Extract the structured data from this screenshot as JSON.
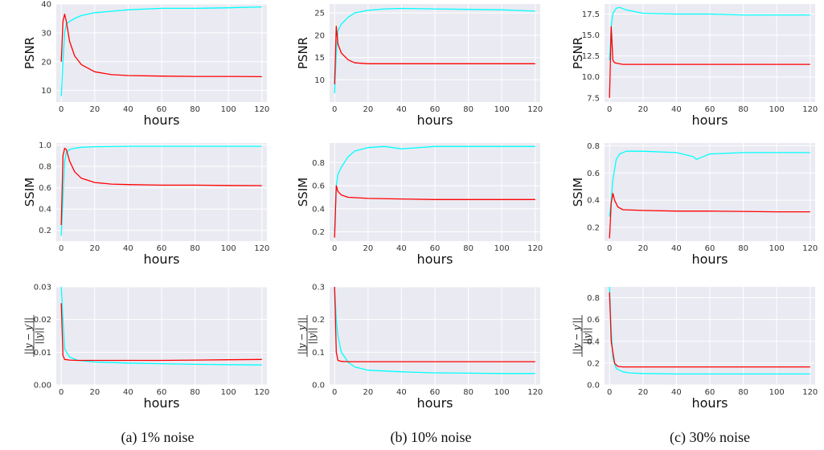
{
  "colors": {
    "series_a": "#00ffff",
    "series_b": "#ff0000",
    "plot_background": "#eaeaf2"
  },
  "captions": [
    "(a) 1% noise",
    "(b) 10% noise",
    "(c) 30% noise"
  ],
  "chart_data": [
    {
      "type": "line",
      "column": 0,
      "row": 0,
      "xlabel": "hours",
      "ylabel": "PSNR",
      "ylabel_kind": "text",
      "xlim": [
        -3,
        123
      ],
      "ylim": [
        6,
        40
      ],
      "xticks": [
        0,
        20,
        40,
        60,
        80,
        100,
        120
      ],
      "xtick_labels": [
        "0",
        "20",
        "40",
        "60",
        "80",
        "100",
        "120"
      ],
      "yticks": [
        10,
        20,
        30,
        40
      ],
      "ytick_labels": [
        "10",
        "20",
        "30",
        "40"
      ],
      "grid": true,
      "legend": "none",
      "series": [
        {
          "color": "#00ffff",
          "x": [
            0,
            1,
            2,
            3,
            5,
            8,
            12,
            20,
            30,
            40,
            60,
            80,
            100,
            120
          ],
          "y": [
            8,
            20,
            30,
            33,
            34,
            35,
            36,
            37,
            37.5,
            38,
            38.5,
            38.5,
            38.7,
            39
          ]
        },
        {
          "color": "#ff0000",
          "x": [
            0,
            1,
            2,
            3,
            5,
            8,
            12,
            20,
            30,
            40,
            60,
            80,
            100,
            120
          ],
          "y": [
            20,
            34,
            36.5,
            34,
            27,
            22,
            19,
            16.5,
            15.5,
            15.2,
            15,
            14.9,
            14.9,
            14.8
          ]
        }
      ]
    },
    {
      "type": "line",
      "column": 1,
      "row": 0,
      "xlabel": "hours",
      "ylabel": "PSNR",
      "ylabel_kind": "text",
      "xlim": [
        -3,
        123
      ],
      "ylim": [
        5,
        27
      ],
      "xticks": [
        0,
        20,
        40,
        60,
        80,
        100,
        120
      ],
      "xtick_labels": [
        "0",
        "20",
        "40",
        "60",
        "80",
        "100",
        "120"
      ],
      "yticks": [
        10,
        15,
        20,
        25
      ],
      "ytick_labels": [
        "10",
        "15",
        "20",
        "25"
      ],
      "grid": true,
      "legend": "none",
      "series": [
        {
          "color": "#00ffff",
          "x": [
            0,
            1,
            2,
            4,
            8,
            12,
            20,
            30,
            40,
            60,
            80,
            100,
            120
          ],
          "y": [
            7,
            16,
            21,
            22.5,
            24,
            25,
            25.6,
            25.9,
            26,
            25.9,
            25.8,
            25.7,
            25.4
          ]
        },
        {
          "color": "#ff0000",
          "x": [
            0,
            1,
            2,
            4,
            8,
            12,
            20,
            40,
            60,
            80,
            100,
            120
          ],
          "y": [
            9,
            22,
            18,
            16,
            14.5,
            13.8,
            13.6,
            13.6,
            13.6,
            13.6,
            13.6,
            13.6
          ]
        }
      ]
    },
    {
      "type": "line",
      "column": 2,
      "row": 0,
      "xlabel": "hours",
      "ylabel": "PSNR",
      "ylabel_kind": "text",
      "xlim": [
        -3,
        123
      ],
      "ylim": [
        7,
        18.7
      ],
      "xticks": [
        0,
        20,
        40,
        60,
        80,
        100,
        120
      ],
      "xtick_labels": [
        "0",
        "20",
        "40",
        "60",
        "80",
        "100",
        "120"
      ],
      "yticks": [
        7.5,
        10,
        12.5,
        15,
        17.5
      ],
      "ytick_labels": [
        "7.5",
        "10.0",
        "12.5",
        "15.0",
        "17.5"
      ],
      "grid": true,
      "legend": "none",
      "series": [
        {
          "color": "#00ffff",
          "x": [
            0,
            1,
            2,
            4,
            6,
            10,
            20,
            40,
            60,
            80,
            100,
            120
          ],
          "y": [
            12,
            16,
            17.6,
            18.2,
            18.3,
            18,
            17.6,
            17.5,
            17.5,
            17.4,
            17.4,
            17.4
          ]
        },
        {
          "color": "#ff0000",
          "x": [
            0,
            1,
            2,
            3,
            5,
            8,
            20,
            40,
            60,
            80,
            100,
            120
          ],
          "y": [
            7.5,
            16,
            12,
            11.7,
            11.6,
            11.5,
            11.5,
            11.5,
            11.5,
            11.5,
            11.5,
            11.5
          ]
        }
      ]
    },
    {
      "type": "line",
      "column": 0,
      "row": 1,
      "xlabel": "hours",
      "ylabel": "SSIM",
      "ylabel_kind": "text",
      "xlim": [
        -3,
        123
      ],
      "ylim": [
        0.1,
        1.02
      ],
      "xticks": [
        0,
        20,
        40,
        60,
        80,
        100,
        120
      ],
      "xtick_labels": [
        "0",
        "20",
        "40",
        "60",
        "80",
        "100",
        "120"
      ],
      "yticks": [
        0.2,
        0.4,
        0.6,
        0.8,
        1.0
      ],
      "ytick_labels": [
        "0.2",
        "0.4",
        "0.6",
        "0.8",
        "1.0"
      ],
      "grid": true,
      "legend": "none",
      "series": [
        {
          "color": "#00ffff",
          "x": [
            0,
            1,
            2,
            3,
            5,
            8,
            12,
            20,
            40,
            60,
            80,
            100,
            120
          ],
          "y": [
            0.15,
            0.5,
            0.85,
            0.93,
            0.96,
            0.97,
            0.98,
            0.985,
            0.99,
            0.99,
            0.99,
            0.99,
            0.99
          ]
        },
        {
          "color": "#ff0000",
          "x": [
            0,
            1,
            2,
            3,
            5,
            8,
            12,
            20,
            30,
            40,
            60,
            80,
            100,
            120
          ],
          "y": [
            0.25,
            0.9,
            0.97,
            0.96,
            0.85,
            0.75,
            0.69,
            0.65,
            0.635,
            0.63,
            0.625,
            0.625,
            0.622,
            0.62
          ]
        }
      ]
    },
    {
      "type": "line",
      "column": 1,
      "row": 1,
      "xlabel": "hours",
      "ylabel": "SSIM",
      "ylabel_kind": "text",
      "xlim": [
        -3,
        123
      ],
      "ylim": [
        0.12,
        0.97
      ],
      "xticks": [
        0,
        20,
        40,
        60,
        80,
        100,
        120
      ],
      "xtick_labels": [
        "0",
        "20",
        "40",
        "60",
        "80",
        "100",
        "120"
      ],
      "yticks": [
        0.2,
        0.4,
        0.6,
        0.8
      ],
      "ytick_labels": [
        "0.2",
        "0.4",
        "0.6",
        "0.8"
      ],
      "grid": true,
      "legend": "none",
      "series": [
        {
          "color": "#00ffff",
          "x": [
            0,
            1,
            2,
            4,
            8,
            12,
            20,
            30,
            40,
            60,
            80,
            100,
            120
          ],
          "y": [
            0.2,
            0.6,
            0.7,
            0.76,
            0.85,
            0.9,
            0.93,
            0.94,
            0.92,
            0.94,
            0.94,
            0.94,
            0.94
          ]
        },
        {
          "color": "#ff0000",
          "x": [
            0,
            1,
            2,
            4,
            8,
            20,
            40,
            60,
            80,
            100,
            120
          ],
          "y": [
            0.15,
            0.6,
            0.55,
            0.52,
            0.5,
            0.49,
            0.485,
            0.48,
            0.48,
            0.48,
            0.48
          ]
        }
      ]
    },
    {
      "type": "line",
      "column": 2,
      "row": 1,
      "xlabel": "hours",
      "ylabel": "SSIM",
      "ylabel_kind": "text",
      "xlim": [
        -3,
        123
      ],
      "ylim": [
        0.1,
        0.82
      ],
      "xticks": [
        0,
        20,
        40,
        60,
        80,
        100,
        120
      ],
      "xtick_labels": [
        "0",
        "20",
        "40",
        "60",
        "80",
        "100",
        "120"
      ],
      "yticks": [
        0.2,
        0.4,
        0.6,
        0.8
      ],
      "ytick_labels": [
        "0.2",
        "0.4",
        "0.6",
        "0.8"
      ],
      "grid": true,
      "legend": "none",
      "series": [
        {
          "color": "#00ffff",
          "x": [
            0,
            1,
            2,
            4,
            6,
            10,
            20,
            40,
            50,
            52,
            60,
            80,
            100,
            120
          ],
          "y": [
            0.28,
            0.4,
            0.55,
            0.7,
            0.74,
            0.76,
            0.76,
            0.75,
            0.72,
            0.7,
            0.74,
            0.75,
            0.75,
            0.75
          ]
        },
        {
          "color": "#ff0000",
          "x": [
            0,
            1,
            2,
            3,
            5,
            8,
            20,
            40,
            60,
            80,
            100,
            120
          ],
          "y": [
            0.12,
            0.38,
            0.45,
            0.4,
            0.35,
            0.33,
            0.325,
            0.32,
            0.32,
            0.318,
            0.315,
            0.315
          ]
        }
      ]
    },
    {
      "type": "line",
      "column": 0,
      "row": 2,
      "xlabel": "hours",
      "ylabel": "||y − y′|| / ||y||",
      "ylabel_kind": "fraction",
      "ylabel_num": "||y − y′||",
      "ylabel_den": "||y||",
      "xlim": [
        -3,
        123
      ],
      "ylim": [
        0,
        0.03
      ],
      "xticks": [
        0,
        20,
        40,
        60,
        80,
        100,
        120
      ],
      "xtick_labels": [
        "0",
        "20",
        "40",
        "60",
        "80",
        "100",
        "120"
      ],
      "yticks": [
        0.0,
        0.01,
        0.02,
        0.03
      ],
      "ytick_labels": [
        "0.00",
        "0.01",
        "0.02",
        "0.03"
      ],
      "grid": true,
      "legend": "none",
      "series": [
        {
          "color": "#00ffff",
          "x": [
            0,
            1,
            2,
            5,
            10,
            20,
            40,
            60,
            80,
            100,
            120
          ],
          "y": [
            0.03,
            0.02,
            0.011,
            0.0085,
            0.0075,
            0.007,
            0.0067,
            0.0065,
            0.0063,
            0.0062,
            0.0061
          ]
        },
        {
          "color": "#ff0000",
          "x": [
            0,
            1,
            2,
            5,
            10,
            20,
            40,
            60,
            80,
            100,
            120
          ],
          "y": [
            0.025,
            0.009,
            0.0078,
            0.0076,
            0.0075,
            0.0075,
            0.0075,
            0.0075,
            0.0076,
            0.0077,
            0.0078
          ]
        }
      ]
    },
    {
      "type": "line",
      "column": 1,
      "row": 2,
      "xlabel": "hours",
      "ylabel": "||y − y′|| / ||y||",
      "ylabel_kind": "fraction",
      "ylabel_num": "||y − y′||",
      "ylabel_den": "||y||",
      "xlim": [
        -3,
        123
      ],
      "ylim": [
        0,
        0.3
      ],
      "xticks": [
        0,
        20,
        40,
        60,
        80,
        100,
        120
      ],
      "xtick_labels": [
        "0",
        "20",
        "40",
        "60",
        "80",
        "100",
        "120"
      ],
      "yticks": [
        0.0,
        0.1,
        0.2,
        0.3
      ],
      "ytick_labels": [
        "0.0",
        "0.1",
        "0.2",
        "0.3"
      ],
      "grid": true,
      "legend": "none",
      "series": [
        {
          "color": "#00ffff",
          "x": [
            0,
            1,
            2,
            4,
            8,
            12,
            20,
            40,
            60,
            80,
            100,
            120
          ],
          "y": [
            0.3,
            0.2,
            0.15,
            0.1,
            0.07,
            0.055,
            0.045,
            0.04,
            0.037,
            0.036,
            0.035,
            0.035
          ]
        },
        {
          "color": "#ff0000",
          "x": [
            0,
            1,
            2,
            4,
            8,
            20,
            40,
            60,
            80,
            100,
            120
          ],
          "y": [
            0.3,
            0.1,
            0.075,
            0.072,
            0.071,
            0.071,
            0.071,
            0.071,
            0.071,
            0.071,
            0.071
          ]
        }
      ]
    },
    {
      "type": "line",
      "column": 2,
      "row": 2,
      "xlabel": "hours",
      "ylabel": "||y − y′|| / ||y||",
      "ylabel_kind": "fraction",
      "ylabel_num": "||y − y′||",
      "ylabel_den": "||y||",
      "xlim": [
        -3,
        123
      ],
      "ylim": [
        0,
        0.9
      ],
      "xticks": [
        0,
        20,
        40,
        60,
        80,
        100,
        120
      ],
      "xtick_labels": [
        "0",
        "20",
        "40",
        "60",
        "80",
        "100",
        "120"
      ],
      "yticks": [
        0.0,
        0.2,
        0.4,
        0.6,
        0.8
      ],
      "ytick_labels": [
        "0.0",
        "0.2",
        "0.4",
        "0.6",
        "0.8"
      ],
      "grid": true,
      "legend": "none",
      "series": [
        {
          "color": "#00ffff",
          "x": [
            0,
            1,
            2,
            4,
            8,
            12,
            20,
            40,
            60,
            80,
            100,
            120
          ],
          "y": [
            0.9,
            0.5,
            0.25,
            0.15,
            0.12,
            0.11,
            0.105,
            0.1,
            0.1,
            0.1,
            0.1,
            0.1
          ]
        },
        {
          "color": "#ff0000",
          "x": [
            0,
            1,
            2,
            3,
            5,
            8,
            20,
            40,
            60,
            80,
            100,
            120
          ],
          "y": [
            0.85,
            0.4,
            0.3,
            0.2,
            0.17,
            0.165,
            0.165,
            0.165,
            0.165,
            0.165,
            0.165,
            0.165
          ]
        }
      ]
    }
  ]
}
